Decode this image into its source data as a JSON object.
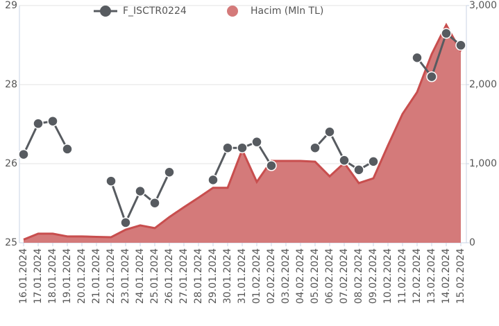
{
  "chart_data": {
    "type": "line-area",
    "categories": [
      "16.01.2024",
      "17.01.2024",
      "18.01.2024",
      "19.01.2024",
      "20.01.2024",
      "21.01.2024",
      "22.01.2024",
      "23.01.2024",
      "24.01.2024",
      "25.01.2024",
      "26.01.2024",
      "27.01.2024",
      "28.01.2024",
      "29.01.2024",
      "30.01.2024",
      "31.01.2024",
      "01.02.2024",
      "02.02.2024",
      "03.02.2024",
      "04.02.2024",
      "05.02.2024",
      "06.02.2024",
      "07.02.2024",
      "08.02.2024",
      "09.02.2024",
      "10.02.2024",
      "11.02.2024",
      "12.02.2024",
      "13.02.2024",
      "14.02.2024",
      "15.02.2024"
    ],
    "series": [
      {
        "name": "F_ISCTR0224",
        "color": "#575b60",
        "type": "line",
        "values": [
          26.49,
          27.01,
          27.05,
          26.58,
          null,
          null,
          26.04,
          25.34,
          25.87,
          25.67,
          26.19,
          null,
          null,
          26.06,
          26.6,
          26.6,
          26.7,
          26.3,
          null,
          null,
          26.6,
          26.87,
          26.39,
          26.23,
          26.37,
          null,
          null,
          28.12,
          27.8,
          28.53,
          28.33
        ]
      },
      {
        "name": "Hacim (Mln TL)",
        "color": "#d47a7a",
        "type": "area",
        "axis": "y2",
        "values": [
          40,
          115,
          115,
          80,
          80,
          75,
          70,
          165,
          220,
          185,
          325,
          450,
          570,
          695,
          695,
          1175,
          770,
          1035,
          1035,
          1035,
          1025,
          840,
          1010,
          755,
          815,
          1230,
          1630,
          1905,
          2385,
          2755,
          2420
        ]
      }
    ],
    "ylim": [
      25,
      29
    ],
    "yticks": [
      25,
      {
        "value": 26.333,
        "label": "26"
      },
      {
        "value": 27.667,
        "label": "28"
      },
      29
    ],
    "y2lim": [
      0,
      3000
    ],
    "y2ticks": [
      0,
      {
        "value": 1000,
        "label": "1,000"
      },
      {
        "value": 2000,
        "label": "2,000"
      },
      {
        "value": 3000,
        "label": "3,000"
      }
    ],
    "grid": true
  }
}
